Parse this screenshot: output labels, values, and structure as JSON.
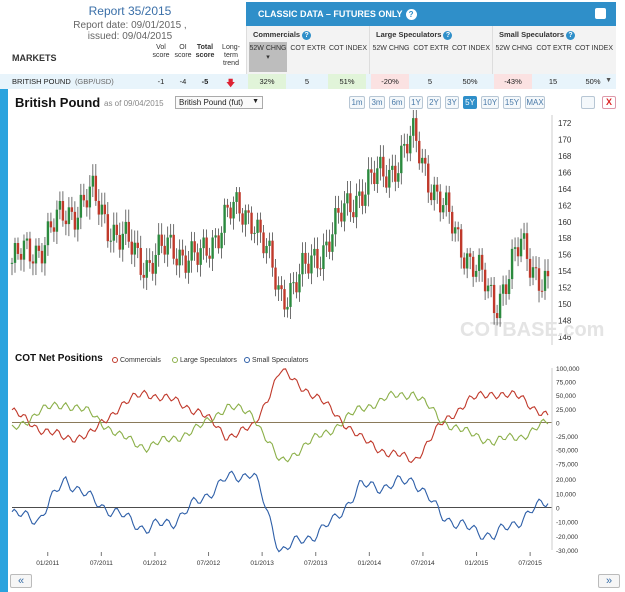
{
  "report": {
    "title": "Report 35/2015",
    "date": "Report date: 09/01/2015 ,",
    "issued": "issued: 09/04/2015"
  },
  "markets_header": {
    "label": "MARKETS",
    "vol": "Vol score",
    "oi": "OI score",
    "total": "Total score",
    "trend": "Long-term trend"
  },
  "classic": {
    "title": "CLASSIC DATA – FUTURES ONLY",
    "help": "?"
  },
  "groups": [
    {
      "name": "Commercials",
      "cols": [
        "52W CHNG",
        "COT EXTR",
        "COT INDEX"
      ]
    },
    {
      "name": "Large Speculators",
      "cols": [
        "52W CHNG",
        "COT EXTR",
        "COT INDEX"
      ]
    },
    {
      "name": "Small Speculators",
      "cols": [
        "52W CHNG",
        "COT EXTR",
        "COT INDEX"
      ]
    }
  ],
  "row": {
    "market": "BRITISH POUND",
    "pair": "(GBP/USD)",
    "vol": "-1",
    "oi": "-4",
    "total": "-5",
    "trend_icon": "down-arrow-icon",
    "values": [
      "32%",
      "5",
      "51%",
      "-20%",
      "5",
      "50%",
      "-43%",
      "15",
      "50%"
    ]
  },
  "chart": {
    "title": "British Pound",
    "asof": "as of 09/04/2015",
    "select": "British Pound (fut)",
    "periods": [
      "1m",
      "3m",
      "6m",
      "1Y",
      "2Y",
      "3Y",
      "5Y",
      "10Y",
      "15Y",
      "MAX"
    ],
    "active_period": "5Y",
    "close": "X",
    "watermark": "COTBASE.com"
  },
  "cot": {
    "title": "COT Net Positions",
    "legend": [
      "Commercials",
      "Large Speculators",
      "Small Speculators"
    ],
    "colors": {
      "commercials": "#c0392b",
      "large": "#8cb04a",
      "small": "#2e5fa8",
      "up": "#2b8a3e",
      "down": "#c0392b"
    }
  },
  "nav": {
    "prev": "«",
    "next": "»"
  },
  "chart_data": [
    {
      "type": "candlestick",
      "title": "British Pound",
      "y_ticks": [
        146,
        148,
        150,
        152,
        154,
        156,
        158,
        160,
        162,
        164,
        166,
        168,
        170,
        172
      ],
      "ylim": [
        145,
        173
      ],
      "x_ticks": [
        "01/2011",
        "07/2011",
        "01/2012",
        "07/2012",
        "01/2013",
        "07/2013",
        "01/2014",
        "07/2014",
        "01/2015",
        "07/2015"
      ],
      "x": [
        "2010-09",
        "2010-12",
        "2011-03",
        "2011-06",
        "2011-09",
        "2011-12",
        "2012-03",
        "2012-06",
        "2012-09",
        "2012-12",
        "2013-03",
        "2013-06",
        "2013-09",
        "2013-12",
        "2014-03",
        "2014-06",
        "2014-09",
        "2014-12",
        "2015-03",
        "2015-06",
        "2015-09"
      ],
      "close": [
        155,
        157,
        161,
        163,
        158,
        155,
        157,
        155,
        161,
        161,
        151,
        154,
        159,
        164,
        166,
        170,
        162,
        156,
        150,
        157,
        152
      ]
    },
    {
      "type": "line",
      "title": "COT Net Positions",
      "y_ticks": [
        -75000,
        -50000,
        -25000,
        0,
        25000,
        50000,
        75000,
        100000
      ],
      "ylim": [
        -80000,
        100000
      ],
      "x": [
        "2010-09",
        "2010-12",
        "2011-03",
        "2011-06",
        "2011-09",
        "2011-12",
        "2012-03",
        "2012-06",
        "2012-09",
        "2012-12",
        "2013-03",
        "2013-06",
        "2013-09",
        "2013-12",
        "2014-03",
        "2014-06",
        "2014-09",
        "2014-12",
        "2015-03",
        "2015-06",
        "2015-09"
      ],
      "series": [
        {
          "name": "Commercials",
          "values": [
            20000,
            -10000,
            -30000,
            -20000,
            30000,
            55000,
            40000,
            20000,
            -25000,
            -10000,
            95000,
            60000,
            20000,
            -30000,
            -55000,
            -70000,
            -5000,
            40000,
            55000,
            45000,
            10000
          ]
        },
        {
          "name": "Large Speculators",
          "values": [
            -15000,
            20000,
            35000,
            15000,
            -25000,
            -45000,
            -30000,
            -10000,
            30000,
            15000,
            -75000,
            -40000,
            -10000,
            25000,
            45000,
            55000,
            5000,
            -20000,
            -35000,
            -25000,
            0
          ]
        },
        {
          "name": "Small Speculators",
          "values": [
            -5000,
            -8000,
            20000,
            5000,
            -5000,
            -15000,
            -10000,
            5000,
            20000,
            25000,
            -30000,
            -22000,
            -10000,
            15000,
            15000,
            20000,
            -5000,
            -15000,
            -20000,
            -8000,
            5000
          ]
        }
      ]
    }
  ]
}
